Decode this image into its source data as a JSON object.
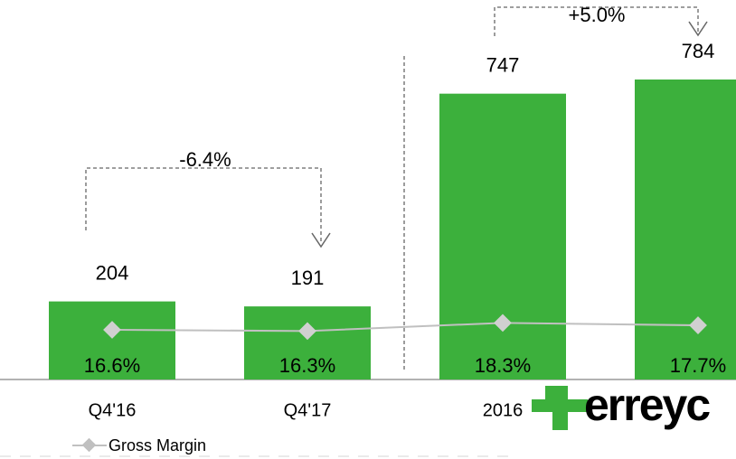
{
  "chart_data": {
    "type": "bar",
    "categories": [
      "Q4'16",
      "Q4'17",
      "2016",
      null
    ],
    "series": [
      {
        "color": "#3cb03c",
        "values": [
          204,
          191,
          747,
          784
        ]
      },
      {
        "name": "Gross Margin",
        "type": "line",
        "axis": "y2",
        "color": "#c0c0c0",
        "values": [
          16.6,
          16.3,
          18.3,
          17.7
        ],
        "value_labels": [
          "16.6%",
          "16.3%",
          "18.3%",
          "17.7%"
        ]
      }
    ],
    "annotations": [
      "-6.4%",
      "+5.0%"
    ],
    "logo": "erreyc"
  }
}
